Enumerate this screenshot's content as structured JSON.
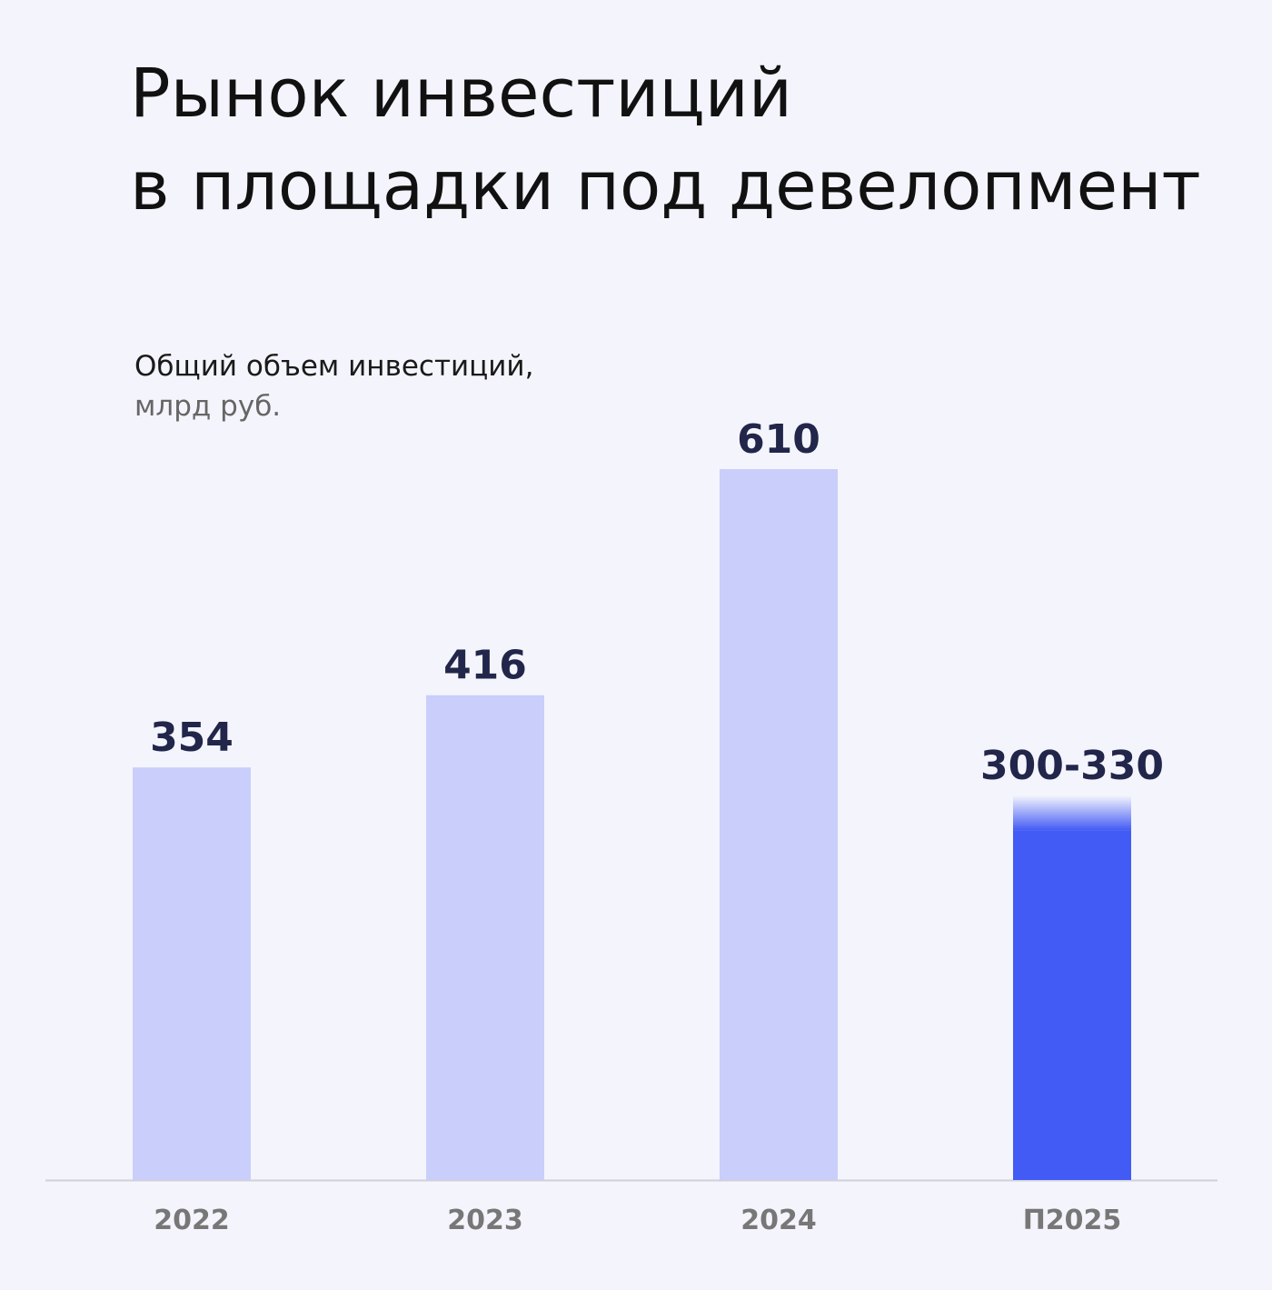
{
  "chart_data": {
    "type": "bar",
    "title": [
      "Рынок инвестиций",
      "в площадки под девелопмент"
    ],
    "subtitle": [
      "Общий объем инвестиций,",
      "млрд руб."
    ],
    "categories": [
      "2022",
      "2023",
      "2024",
      "П2025"
    ],
    "values": [
      354,
      416,
      610,
      300
    ],
    "upper": [
      null,
      null,
      null,
      330
    ],
    "value_labels": [
      "354",
      "416",
      "610",
      "300-330"
    ],
    "colors": [
      "#c9cffa",
      "#c9cffa",
      "#c9cffa",
      "#435bf5"
    ]
  }
}
